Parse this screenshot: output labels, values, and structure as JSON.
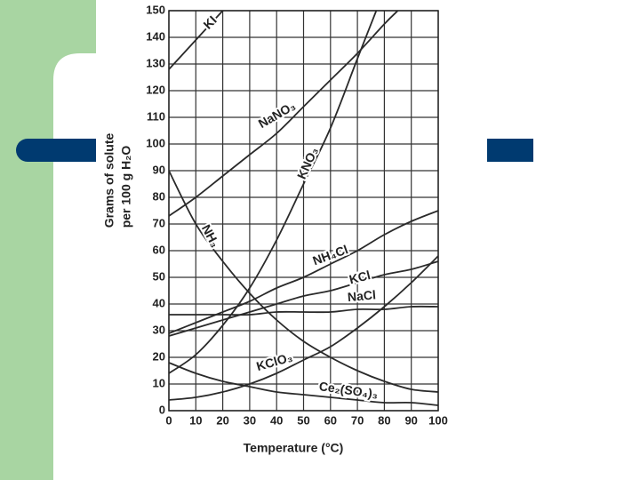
{
  "chart_data": {
    "type": "line",
    "xlabel": "Temperature (°C)",
    "ylabel": [
      "Grams of solute",
      "per 100 g H₂O"
    ],
    "xlim": [
      0,
      100
    ],
    "xticks": [
      0,
      10,
      20,
      30,
      40,
      50,
      60,
      70,
      80,
      90,
      100
    ],
    "ylim": [
      0,
      150
    ],
    "yticks": [
      0,
      10,
      20,
      30,
      40,
      50,
      60,
      70,
      80,
      90,
      100,
      110,
      120,
      130,
      140,
      150
    ],
    "grid": true,
    "series": [
      {
        "name": "KI",
        "color": "#2a2a2a",
        "x": [
          0,
          10,
          20
        ],
        "values": [
          128,
          139,
          150
        ]
      },
      {
        "name": "NaNO₃",
        "color": "#2a2a2a",
        "x": [
          0,
          10,
          20,
          30,
          40,
          50,
          60,
          70,
          80,
          85
        ],
        "values": [
          73,
          80,
          88,
          96,
          104,
          114,
          124,
          134,
          145,
          150
        ]
      },
      {
        "name": "KNO₃",
        "color": "#2a2a2a",
        "x": [
          0,
          10,
          20,
          30,
          40,
          50,
          60,
          70,
          77
        ],
        "values": [
          14,
          21,
          32,
          46,
          64,
          85,
          106,
          132,
          150
        ]
      },
      {
        "name": "NH₃",
        "color": "#2a2a2a",
        "x": [
          0,
          10,
          20,
          30,
          40,
          50,
          60,
          70,
          80,
          90,
          100
        ],
        "values": [
          90,
          70,
          56,
          44,
          34,
          26,
          20,
          15,
          11,
          8,
          7
        ]
      },
      {
        "name": "NH₄Cl",
        "color": "#2a2a2a",
        "x": [
          0,
          10,
          20,
          30,
          40,
          50,
          60,
          70,
          80,
          90,
          100
        ],
        "values": [
          29,
          33,
          37,
          41,
          46,
          50,
          55,
          60,
          66,
          71,
          75
        ]
      },
      {
        "name": "KCl",
        "color": "#2a2a2a",
        "x": [
          0,
          10,
          20,
          30,
          40,
          50,
          60,
          70,
          80,
          90,
          100
        ],
        "values": [
          28,
          31,
          34,
          37,
          40,
          43,
          45,
          48,
          51,
          53,
          56
        ]
      },
      {
        "name": "NaCl",
        "color": "#2a2a2a",
        "x": [
          0,
          10,
          20,
          30,
          40,
          50,
          60,
          70,
          80,
          90,
          100
        ],
        "values": [
          36,
          36,
          36,
          36,
          37,
          37,
          37,
          38,
          38,
          39,
          39
        ]
      },
      {
        "name": "KClO₃",
        "color": "#2a2a2a",
        "x": [
          0,
          10,
          20,
          30,
          40,
          50,
          60,
          70,
          80,
          90,
          100
        ],
        "values": [
          4,
          5,
          7,
          10,
          14,
          19,
          24,
          31,
          39,
          48,
          58
        ]
      },
      {
        "name": "Ce₂(SO₄)₃",
        "color": "#2a2a2a",
        "x": [
          0,
          10,
          20,
          30,
          40,
          50,
          60,
          70,
          80,
          90,
          100
        ],
        "values": [
          18,
          14,
          11,
          9,
          7,
          6,
          5,
          4,
          3,
          3,
          2
        ]
      }
    ]
  }
}
